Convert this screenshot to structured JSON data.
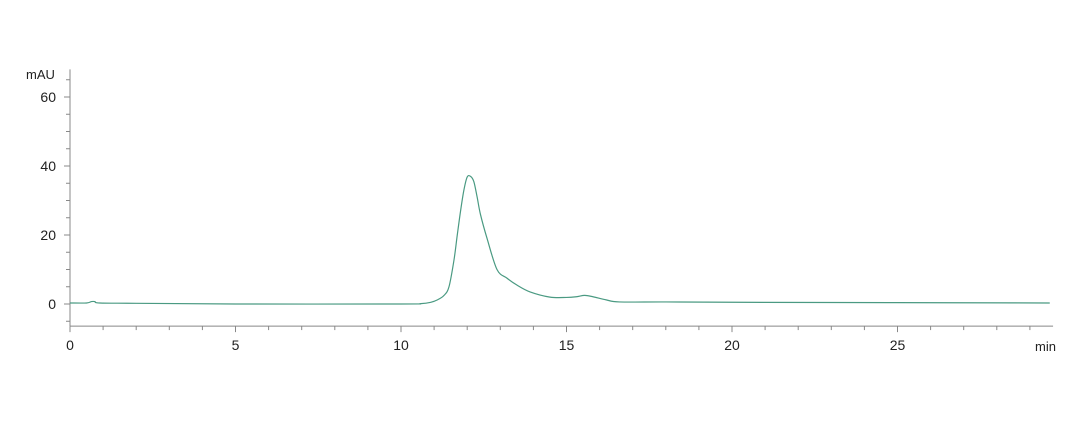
{
  "chart_data": {
    "type": "line",
    "title": "",
    "xlabel": "min",
    "ylabel": "mAU",
    "xlim": [
      0,
      29.7
    ],
    "ylim": [
      -6.4,
      68
    ],
    "x_ticks": [
      0,
      5,
      10,
      15,
      20,
      25
    ],
    "x_tick_labels": [
      "0",
      "5",
      "10",
      "15",
      "20",
      "25"
    ],
    "y_ticks": [
      0,
      20,
      40,
      60
    ],
    "y_tick_labels": [
      "0",
      "20",
      "40",
      "60"
    ],
    "x_minor_step": 1,
    "y_minor_step": 5,
    "grid": false,
    "line_color": "#4a9a82",
    "series": [
      {
        "x": [
          0,
          0.5,
          0.65,
          0.75,
          0.9,
          2,
          5,
          10,
          10.6,
          10.9,
          11.1,
          11.3,
          11.45,
          11.6,
          11.7,
          11.8,
          11.9,
          12.0,
          12.1,
          12.2,
          12.3,
          12.4,
          12.6,
          12.9,
          13.2,
          13.5,
          13.9,
          14.5,
          15.0,
          15.3,
          15.55,
          15.8,
          16.2,
          16.6,
          18,
          20,
          25,
          29.6
        ],
        "y": [
          0.3,
          0.3,
          0.7,
          0.7,
          0.3,
          0.2,
          0,
          0,
          0.1,
          0.5,
          1.2,
          2.5,
          5,
          12.7,
          20,
          27,
          33,
          36.8,
          37,
          35.5,
          31,
          26,
          19,
          10,
          7.5,
          5.5,
          3.5,
          2,
          1.9,
          2.1,
          2.5,
          2.1,
          1.2,
          0.6,
          0.6,
          0.5,
          0.4,
          0.3
        ]
      }
    ]
  }
}
